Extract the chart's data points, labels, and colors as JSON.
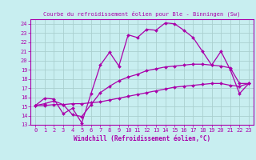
{
  "title": "Courbe du refroidissement éolien pour Ble - Binningen (Sw)",
  "xlabel": "Windchill (Refroidissement éolien,°C)",
  "bg_color": "#c8eef0",
  "grid_color": "#aacfcf",
  "line_color": "#aa00aa",
  "spine_color": "#aa00aa",
  "xlim": [
    -0.5,
    23.5
  ],
  "ylim": [
    13,
    24.5
  ],
  "xticks": [
    0,
    1,
    2,
    3,
    4,
    5,
    6,
    7,
    8,
    9,
    10,
    11,
    12,
    13,
    14,
    15,
    16,
    17,
    18,
    19,
    20,
    21,
    22,
    23
  ],
  "yticks": [
    13,
    14,
    15,
    16,
    17,
    18,
    19,
    20,
    21,
    22,
    23,
    24
  ],
  "series": [
    [
      15.1,
      15.9,
      15.8,
      14.2,
      14.8,
      13.2,
      16.4,
      19.5,
      20.9,
      19.4,
      22.8,
      22.5,
      23.4,
      23.3,
      24.1,
      24.0,
      23.3,
      22.5,
      21.0,
      19.5,
      21.0,
      19.0,
      16.4,
      17.5
    ],
    [
      15.1,
      15.3,
      15.6,
      15.2,
      14.1,
      13.9,
      15.2,
      16.5,
      17.2,
      17.8,
      18.2,
      18.5,
      18.9,
      19.1,
      19.3,
      19.4,
      19.5,
      19.6,
      19.6,
      19.5,
      19.4,
      19.2,
      17.5,
      17.5
    ],
    [
      15.1,
      15.1,
      15.2,
      15.2,
      15.3,
      15.3,
      15.4,
      15.5,
      15.7,
      15.9,
      16.1,
      16.3,
      16.5,
      16.7,
      16.9,
      17.1,
      17.2,
      17.3,
      17.4,
      17.5,
      17.5,
      17.3,
      17.2,
      17.5
    ]
  ],
  "marker": "D",
  "marker_size": 2.0,
  "linewidth": 0.9,
  "tick_fontsize": 5.0,
  "xlabel_fontsize": 5.5,
  "title_fontsize": 5.0
}
